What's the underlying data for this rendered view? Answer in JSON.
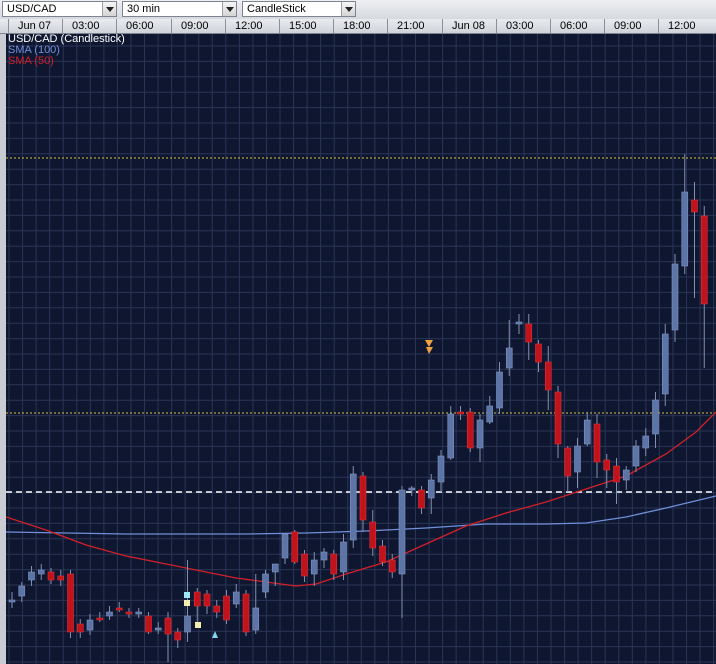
{
  "toolbar": {
    "symbol": "USD/CAD",
    "timeframe": "30 min",
    "chart_type": "CandleStick"
  },
  "legend": {
    "title": "USD/CAD (Candlestick)",
    "sma100": "SMA (100)",
    "sma50": "SMA (50)"
  },
  "colors": {
    "background": "#0f1730",
    "grid": "#2a3556",
    "bull_candle": "#5d74a6",
    "bear_candle": "#c0131b",
    "sma100": "#6f8fd8",
    "sma50": "#d2202a",
    "level_line": "#d8c33c",
    "dashed_line": "#ffffff",
    "legend_title": "#ffffff"
  },
  "chart_data": {
    "type": "candlestick",
    "time_labels": [
      "Jun 07",
      "03:00",
      "06:00",
      "09:00",
      "12:00",
      "15:00",
      "18:00",
      "21:00",
      "Jun 08",
      "03:00",
      "06:00",
      "09:00",
      "12:00"
    ],
    "series": [
      {
        "name": "SMA (100)",
        "values": []
      },
      {
        "name": "SMA (50)",
        "values": []
      }
    ],
    "candle_count": 72
  }
}
